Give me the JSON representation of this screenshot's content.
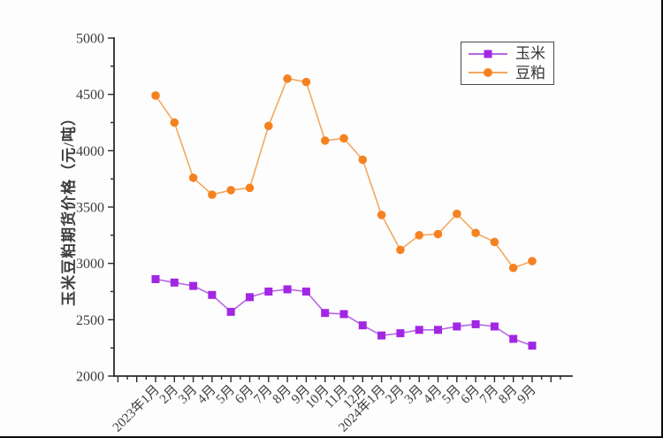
{
  "chart_data": {
    "type": "line",
    "title": "",
    "xlabel": "",
    "ylabel": "玉米豆粕期货价格（元/吨）",
    "ylim": [
      2000,
      5000
    ],
    "y_major_step": 500,
    "y_minor_step": 250,
    "y_ticks": [
      "2000",
      "2500",
      "3000",
      "3500",
      "4000",
      "4500",
      "5000"
    ],
    "grid": false,
    "legend_position": "top-right",
    "categories": [
      "2023年1月",
      "2月",
      "3月",
      "4月",
      "5月",
      "6月",
      "7月",
      "8月",
      "9月",
      "10月",
      "11月",
      "12月",
      "2024年1月",
      "2月",
      "3月",
      "4月",
      "5月",
      "6月",
      "7月",
      "8月",
      "9月"
    ],
    "series": [
      {
        "name": "玉米",
        "marker": "square",
        "marker_color": "#a227e3",
        "line_color": "#b767e6",
        "values": [
          2860,
          2830,
          2800,
          2720,
          2570,
          2700,
          2750,
          2770,
          2750,
          2560,
          2550,
          2450,
          2360,
          2380,
          2410,
          2410,
          2440,
          2460,
          2440,
          2330,
          2270
        ]
      },
      {
        "name": "豆粕",
        "marker": "circle",
        "marker_color": "#f58220",
        "line_color": "#f3a960",
        "values": [
          4490,
          4250,
          3760,
          3610,
          3650,
          3670,
          4220,
          4640,
          4610,
          4090,
          4110,
          3920,
          3430,
          3120,
          3250,
          3260,
          3440,
          3270,
          3190,
          2960,
          3020
        ]
      }
    ]
  }
}
